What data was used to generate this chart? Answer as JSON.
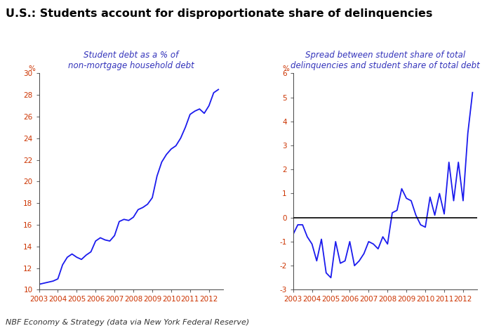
{
  "title": "U.S.: Students account for disproportionate share of delinquencies",
  "title_color": "#000000",
  "title_fontsize": 11.5,
  "subtitle_color": "#3333bb",
  "line_color": "#1a1aee",
  "footer": "NBF Economy & Strategy (data via New York Federal Reserve)",
  "footer_color": "#333333",
  "footer_fontstyle": "italic",
  "chart1_title": "Student debt as a % of\nnon-mortgage household debt",
  "chart1_ylabel": "%",
  "chart1_ylim": [
    10,
    30
  ],
  "chart1_yticks": [
    10,
    12,
    14,
    16,
    18,
    20,
    22,
    24,
    26,
    28,
    30
  ],
  "chart2_title": "Spread between student share of total\ndelinquencies and student share of total debt",
  "chart2_ylabel": "%",
  "chart2_ylim": [
    -3,
    6
  ],
  "chart2_yticks": [
    -3,
    -2,
    -1,
    0,
    1,
    2,
    3,
    4,
    5,
    6
  ],
  "x_labels": [
    "2003",
    "2004",
    "2005",
    "2006",
    "2007",
    "2008",
    "2009",
    "2010",
    "2011",
    "2012"
  ],
  "tick_color": "#cc3300",
  "chart1_x": [
    2003.0,
    2003.25,
    2003.5,
    2003.75,
    2004.0,
    2004.25,
    2004.5,
    2004.75,
    2005.0,
    2005.25,
    2005.5,
    2005.75,
    2006.0,
    2006.25,
    2006.5,
    2006.75,
    2007.0,
    2007.25,
    2007.5,
    2007.75,
    2008.0,
    2008.25,
    2008.5,
    2008.75,
    2009.0,
    2009.25,
    2009.5,
    2009.75,
    2010.0,
    2010.25,
    2010.5,
    2010.75,
    2011.0,
    2011.25,
    2011.5,
    2011.75,
    2012.0,
    2012.25,
    2012.5
  ],
  "chart1_y": [
    10.5,
    10.6,
    10.7,
    10.8,
    11.0,
    12.3,
    13.0,
    13.3,
    13.0,
    12.8,
    13.2,
    13.5,
    14.5,
    14.8,
    14.6,
    14.5,
    15.0,
    16.3,
    16.5,
    16.4,
    16.7,
    17.4,
    17.6,
    17.9,
    18.5,
    20.5,
    21.8,
    22.5,
    23.0,
    23.3,
    24.0,
    25.0,
    26.2,
    26.5,
    26.7,
    26.3,
    27.0,
    28.2,
    28.5
  ],
  "chart2_x": [
    2003.0,
    2003.25,
    2003.5,
    2003.75,
    2004.0,
    2004.25,
    2004.5,
    2004.75,
    2005.0,
    2005.25,
    2005.5,
    2005.75,
    2006.0,
    2006.25,
    2006.5,
    2006.75,
    2007.0,
    2007.25,
    2007.5,
    2007.75,
    2008.0,
    2008.25,
    2008.5,
    2008.75,
    2009.0,
    2009.25,
    2009.5,
    2009.75,
    2010.0,
    2010.25,
    2010.5,
    2010.75,
    2011.0,
    2011.25,
    2011.5,
    2011.75,
    2012.0,
    2012.25,
    2012.5
  ],
  "chart2_y": [
    -0.7,
    -0.3,
    -0.3,
    -0.8,
    -1.1,
    -1.8,
    -0.9,
    -2.3,
    -2.5,
    -1.0,
    -1.9,
    -1.8,
    -1.0,
    -2.0,
    -1.8,
    -1.5,
    -1.0,
    -1.1,
    -1.3,
    -0.8,
    -1.1,
    0.2,
    0.3,
    1.2,
    0.8,
    0.7,
    0.1,
    -0.3,
    -0.4,
    0.85,
    0.1,
    1.0,
    0.15,
    2.3,
    0.7,
    2.3,
    0.7,
    3.5,
    5.2
  ]
}
